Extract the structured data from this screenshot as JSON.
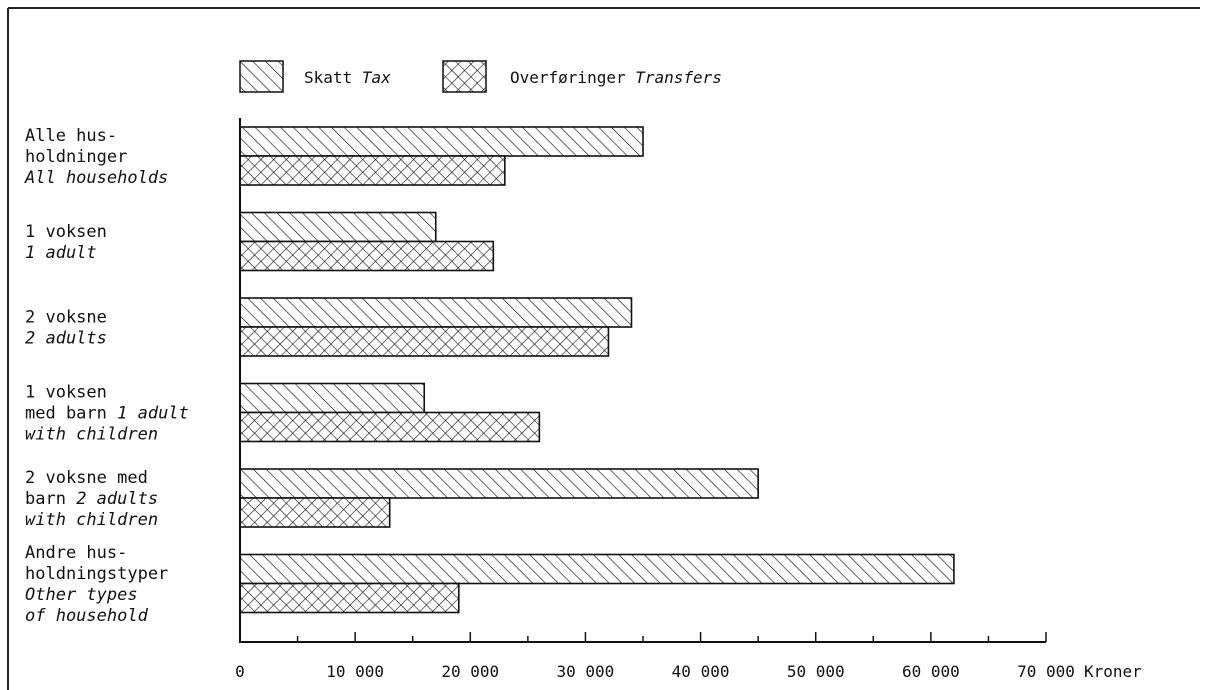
{
  "chart_data": {
    "type": "bar",
    "orientation": "horizontal",
    "legend": {
      "placement": "top",
      "items": [
        {
          "no": "Skatt",
          "en": "Tax",
          "pattern": "hatch"
        },
        {
          "no": "Overføringer",
          "en": "Transfers",
          "pattern": "crosshatch"
        }
      ]
    },
    "categories": [
      {
        "lines": [
          {
            "t": "Alle hus-",
            "i": false
          },
          {
            "t": "holdninger",
            "i": false
          },
          {
            "t": "All households",
            "i": true
          }
        ]
      },
      {
        "lines": [
          {
            "t": "1 voksen",
            "i": false
          },
          {
            "t": "1 adult",
            "i": true
          }
        ]
      },
      {
        "lines": [
          {
            "t": "2 voksne",
            "i": false
          },
          {
            "t": "2 adults",
            "i": true
          }
        ]
      },
      {
        "lines": [
          {
            "t": "1 voksen",
            "i": false
          },
          {
            "t": "med barn ",
            "i": false,
            "tail": "1 adult"
          },
          {
            "t": "with children",
            "i": true
          }
        ]
      },
      {
        "lines": [
          {
            "t": "2 voksne med",
            "i": false
          },
          {
            "t": "barn ",
            "i": false,
            "tail": "2 adults"
          },
          {
            "t": "with children",
            "i": true
          }
        ]
      },
      {
        "lines": [
          {
            "t": "Andre hus-",
            "i": false
          },
          {
            "t": "holdningstyper",
            "i": false
          },
          {
            "t": "Other types",
            "i": true
          },
          {
            "t": "of household",
            "i": true
          }
        ]
      }
    ],
    "series": [
      {
        "name": "Skatt Tax",
        "values": [
          35000,
          17000,
          34000,
          16000,
          45000,
          62000
        ]
      },
      {
        "name": "Overføringer Transfers",
        "values": [
          23000,
          22000,
          32000,
          26000,
          13000,
          19000
        ]
      }
    ],
    "xlim": [
      0,
      70000
    ],
    "x_ticks": [
      {
        "value": 0,
        "label": "0"
      },
      {
        "value": 10000,
        "label": "10 000"
      },
      {
        "value": 20000,
        "label": "20 000"
      },
      {
        "value": 30000,
        "label": "30 000"
      },
      {
        "value": 40000,
        "label": "40 000"
      },
      {
        "value": 50000,
        "label": "50 000"
      },
      {
        "value": 60000,
        "label": "60 000"
      },
      {
        "value": 70000,
        "label": "70 000"
      }
    ],
    "x_unit": "Kroner",
    "grid": false
  }
}
